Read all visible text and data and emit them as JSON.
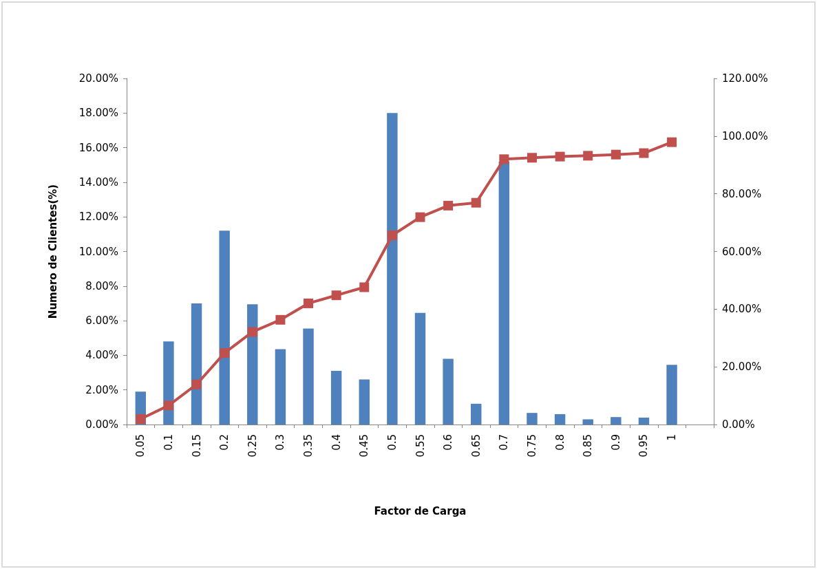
{
  "chart_data": {
    "type": "bar",
    "xlabel": "Factor de Carga",
    "ylabel": "Numero de Clientes(%)",
    "categories": [
      "0.05",
      "0.1",
      "0.15",
      "0.2",
      "0.25",
      "0.3",
      "0.35",
      "0.4",
      "0.45",
      "0.5",
      "0.55",
      "0.6",
      "0.65",
      "0.7",
      "0.75",
      "0.8",
      "0.85",
      "0.9",
      "0.95",
      "1",
      null
    ],
    "series": [
      {
        "color": "#4f81bd",
        "values": [
          1.9,
          4.8,
          7.0,
          11.2,
          6.95,
          4.35,
          5.55,
          3.1,
          2.6,
          18.0,
          6.45,
          3.8,
          1.2,
          15.2,
          0.67,
          0.6,
          0.3,
          0.43,
          0.4,
          3.45,
          null
        ]
      },
      {
        "type": "line",
        "axis": "y2",
        "color": "#c0504d",
        "marker": "square",
        "line_style": "solid",
        "values": [
          1.9,
          6.6,
          13.9,
          24.8,
          32.1,
          36.3,
          42.0,
          44.8,
          47.6,
          65.6,
          71.9,
          75.9,
          76.9,
          92.0,
          92.5,
          92.9,
          93.2,
          93.6,
          94.1,
          97.9,
          null
        ]
      }
    ],
    "ylim": [
      0,
      20
    ],
    "yticks": [
      {
        "value": 0,
        "label": "0.00%"
      },
      {
        "value": 2,
        "label": "2.00%"
      },
      {
        "value": 4,
        "label": "4.00%"
      },
      {
        "value": 6,
        "label": "6.00%"
      },
      {
        "value": 8,
        "label": "8.00%"
      },
      {
        "value": 10,
        "label": "10.00%"
      },
      {
        "value": 12,
        "label": "12.00%"
      },
      {
        "value": 14,
        "label": "14.00%"
      },
      {
        "value": 16,
        "label": "16.00%"
      },
      {
        "value": 18,
        "label": "18.00%"
      },
      {
        "value": 20,
        "label": "20.00%"
      }
    ],
    "y2lim": [
      0,
      120
    ],
    "y2ticks": [
      {
        "value": 0,
        "label": "0.00%"
      },
      {
        "value": 20,
        "label": "20.00%"
      },
      {
        "value": 40,
        "label": "40.00%"
      },
      {
        "value": 60,
        "label": "60.00%"
      },
      {
        "value": 80,
        "label": "80.00%"
      },
      {
        "value": 100,
        "label": "100.00%"
      },
      {
        "value": 120,
        "label": "120.00%"
      }
    ],
    "grid": false
  }
}
